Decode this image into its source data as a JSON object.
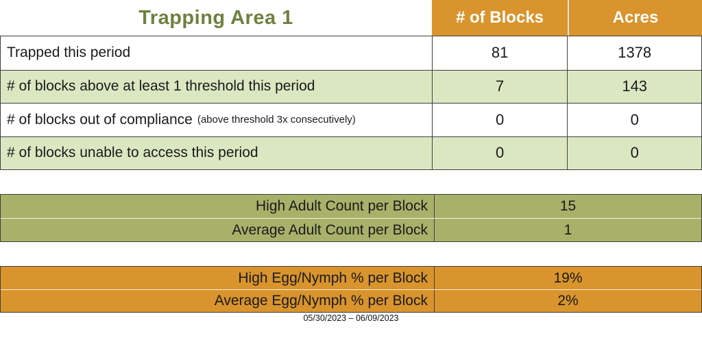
{
  "page": {
    "title": "Trapping Area 1",
    "date_range": "05/30/2023 – 06/09/2023"
  },
  "colors": {
    "title_green": "#6F803F",
    "header_orange": "#D9942D",
    "row_light_green": "#DBE7C1",
    "olive_band": "#A8B169",
    "border_dark": "#3F3F3F",
    "header_text": "#FFFFFF"
  },
  "main_table": {
    "col_headers": [
      "# of Blocks",
      "Acres"
    ],
    "rows": [
      {
        "label": "Trapped this period",
        "note": "",
        "blocks": "81",
        "acres": "1378"
      },
      {
        "label": "# of blocks above at least 1 threshold this period",
        "note": "",
        "blocks": "7",
        "acres": "143"
      },
      {
        "label": "# of blocks out of compliance",
        "note": "(above threshold 3x consecutively)",
        "blocks": "0",
        "acres": "0"
      },
      {
        "label": "# of blocks unable to access this period",
        "note": "",
        "blocks": "0",
        "acres": "0"
      }
    ]
  },
  "adult_table": {
    "rows": [
      {
        "label": "High Adult Count per Block",
        "value": "15"
      },
      {
        "label": "Average Adult Count per Block",
        "value": "1"
      }
    ]
  },
  "egg_table": {
    "rows": [
      {
        "label": "High Egg/Nymph % per Block",
        "value": "19%"
      },
      {
        "label": "Average Egg/Nymph % per Block",
        "value": "2%"
      }
    ]
  }
}
